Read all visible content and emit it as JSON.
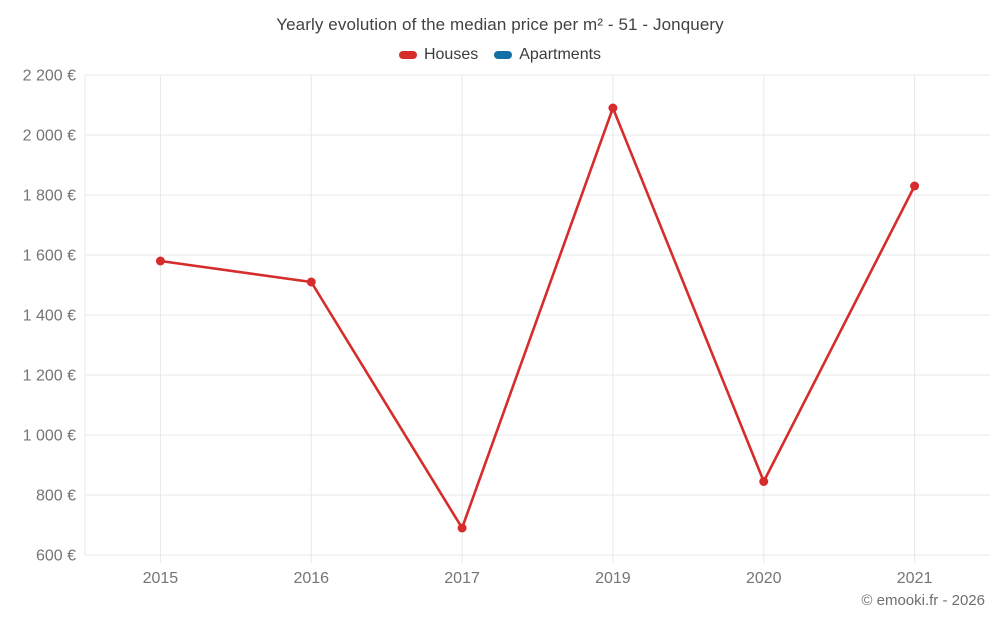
{
  "title": "Yearly evolution of the median price per m² - 51 - Jonquery",
  "legend": {
    "items": [
      {
        "label": "Houses",
        "color": "#d62c2c"
      },
      {
        "label": "Apartments",
        "color": "#1370a2"
      }
    ]
  },
  "footer": "© emooki.fr - 2026",
  "chart_data": {
    "type": "line",
    "title": "Yearly evolution of the median price per m² - 51 - Jonquery",
    "categories": [
      "2015",
      "2016",
      "2017",
      "2019",
      "2020",
      "2021"
    ],
    "series": [
      {
        "name": "Houses",
        "color": "#d62c2c",
        "values": [
          1580,
          1510,
          690,
          2090,
          845,
          1830
        ]
      },
      {
        "name": "Apartments",
        "color": "#1370a2",
        "values": []
      }
    ],
    "xlabel": "",
    "ylabel": "",
    "ylim": [
      600,
      2200
    ],
    "yticks": [
      600,
      800,
      1000,
      1200,
      1400,
      1600,
      1800,
      2000,
      2200
    ],
    "ytick_suffix": " €",
    "grid": true,
    "legend_position": "top",
    "marker": "circle"
  }
}
